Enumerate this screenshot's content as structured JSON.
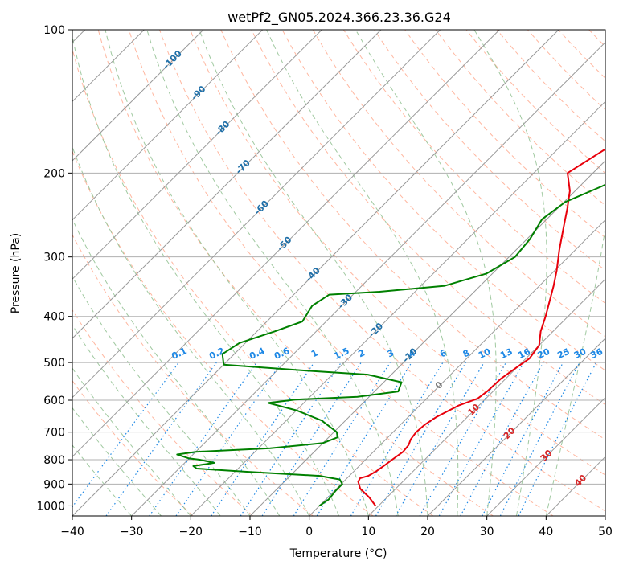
{
  "chart_data": {
    "type": "line",
    "title": "wetPf2_GN05.2024.366.23.36.G24",
    "xlabel": "Temperature (°C)",
    "ylabel": "Pressure (hPa)",
    "xlim": [
      -40,
      50
    ],
    "ylim": [
      1050,
      100
    ],
    "y_scale": "log",
    "grid": true,
    "x_ticks": [
      -40,
      -30,
      -20,
      -10,
      0,
      10,
      20,
      30,
      40,
      50
    ],
    "y_ticks": [
      100,
      200,
      300,
      400,
      500,
      600,
      700,
      800,
      900,
      1000
    ],
    "colors": {
      "temperature": "#e8000b",
      "dewpoint": "#008000",
      "isotherm": "#999999",
      "dry_adiabat": "#ff9977",
      "moist_adiabat": "#8fbf8f",
      "mixing_ratio": "#1e88e5",
      "isotherm_label": "#1f6fa8",
      "mixing_label": "#1e88e5",
      "red_label": "#d62728",
      "gray_label": "#777777",
      "special_curve": "#d9c4a8"
    },
    "series": [
      {
        "key": "temperature",
        "points": [
          [
            9.5,
            1000
          ],
          [
            7,
            960
          ],
          [
            4,
            920
          ],
          [
            2.5,
            890
          ],
          [
            2.2,
            875
          ],
          [
            3.2,
            865
          ],
          [
            3.8,
            845
          ],
          [
            4.2,
            820
          ],
          [
            4.5,
            800
          ],
          [
            5,
            770
          ],
          [
            4.8,
            745
          ],
          [
            4.2,
            725
          ],
          [
            3.9,
            700
          ],
          [
            4.1,
            675
          ],
          [
            4.8,
            650
          ],
          [
            6.6,
            615
          ],
          [
            8.6,
            595
          ],
          [
            9,
            575
          ],
          [
            9.2,
            540
          ],
          [
            10,
            510
          ],
          [
            10.6,
            490
          ],
          [
            10,
            460
          ],
          [
            7.9,
            430
          ],
          [
            6.2,
            400
          ],
          [
            4.2,
            370
          ],
          [
            2.4,
            345
          ],
          [
            0.3,
            320
          ],
          [
            -2.7,
            290
          ],
          [
            -5.8,
            260
          ],
          [
            -8.4,
            237
          ],
          [
            -10.9,
            218
          ],
          [
            -14.3,
            200
          ],
          [
            -11.6,
            175
          ],
          [
            -1.6,
            155
          ],
          [
            4.2,
            140
          ],
          [
            8.4,
            128
          ],
          [
            12.2,
            118
          ],
          [
            16.6,
            108
          ],
          [
            18.7,
            100
          ]
        ]
      },
      {
        "key": "dewpoint",
        "points": [
          [
            0,
            1000
          ],
          [
            0.5,
            970
          ],
          [
            0.2,
            930
          ],
          [
            0.2,
            900
          ],
          [
            -1,
            880
          ],
          [
            -5,
            865
          ],
          [
            -18,
            848
          ],
          [
            -27,
            835
          ],
          [
            -28,
            825
          ],
          [
            -25,
            812
          ],
          [
            -28,
            800
          ],
          [
            -30,
            795
          ],
          [
            -32.7,
            780
          ],
          [
            -30,
            770
          ],
          [
            -18,
            757
          ],
          [
            -10,
            738
          ],
          [
            -8.5,
            718
          ],
          [
            -9.5,
            700
          ],
          [
            -14,
            662
          ],
          [
            -20,
            630
          ],
          [
            -26,
            608
          ],
          [
            -22,
            598
          ],
          [
            -12,
            590
          ],
          [
            -6,
            575
          ],
          [
            -7,
            550
          ],
          [
            -14,
            530
          ],
          [
            -25,
            520
          ],
          [
            -40,
            505
          ],
          [
            -42,
            480
          ],
          [
            -41,
            455
          ],
          [
            -37,
            430
          ],
          [
            -34,
            410
          ],
          [
            -35,
            380
          ],
          [
            -34,
            360
          ],
          [
            -26,
            355
          ],
          [
            -16,
            345
          ],
          [
            -11,
            325
          ],
          [
            -9,
            300
          ],
          [
            -9.5,
            275
          ],
          [
            -10.8,
            250
          ],
          [
            -9.8,
            230
          ],
          [
            -6.2,
            213
          ],
          [
            -3.8,
            200
          ],
          [
            2.1,
            180
          ],
          [
            2.4,
            165
          ],
          [
            -0.2,
            150
          ],
          [
            -2.2,
            138
          ],
          [
            0.6,
            125
          ],
          [
            6,
            112
          ],
          [
            11,
            100
          ]
        ]
      }
    ],
    "isotherm_labels": [
      "-100",
      "-90",
      "-80",
      "-70",
      "-60",
      "-50",
      "-40",
      "-30",
      "-20",
      "-10"
    ],
    "mixing_ratio_labels": [
      "0.1",
      "0.2",
      "0.4",
      "0.6",
      "1",
      "1.5",
      "2",
      "3",
      "4",
      "6",
      "8",
      "10",
      "13",
      "16",
      "20",
      "25",
      "30",
      "36"
    ],
    "positive_isotherm_labels": [
      "0",
      "10",
      "20",
      "30",
      "40"
    ]
  }
}
